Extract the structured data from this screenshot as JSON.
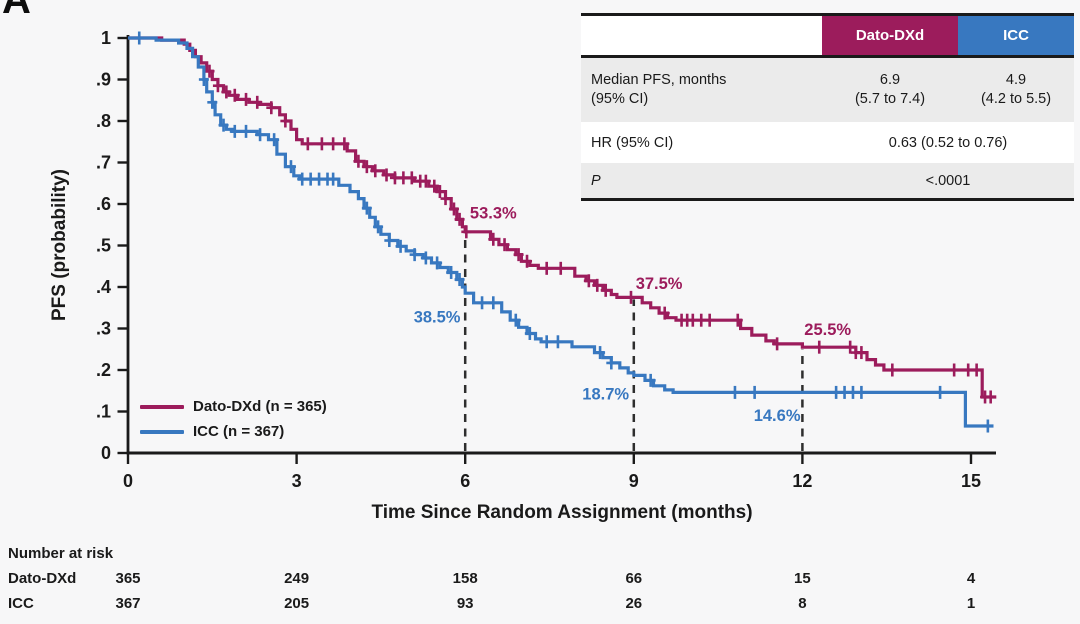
{
  "panel_label": "A",
  "colors": {
    "dato": "#9C1C5C",
    "icc": "#3878C0",
    "axis": "#1A1A1A",
    "dash": "#2E2E2E",
    "background": "#F7F7F8",
    "table_gray_row": "#EBEBEB",
    "table_border": "#1A1A1A",
    "header_dato_bg": "#9C1C5C",
    "header_icc_bg": "#3878C0"
  },
  "summary_table": {
    "col_headers": {
      "dato": "Dato-DXd",
      "icc": "ICC"
    },
    "row_median": {
      "label_line1": "Median PFS, months",
      "label_line2": "(95% CI)",
      "dato_value": "6.9",
      "dato_ci": "(5.7 to 7.4)",
      "icc_value": "4.9",
      "icc_ci": "(4.2 to 5.5)"
    },
    "row_hr": {
      "label": "HR (95% CI)",
      "value": "0.63 (0.52 to 0.76)"
    },
    "row_p": {
      "label": "P",
      "value": "<.0001"
    }
  },
  "legend": {
    "items": [
      {
        "key": "dato",
        "label": "Dato-DXd (n = 365)"
      },
      {
        "key": "icc",
        "label": "ICC (n = 367)"
      }
    ]
  },
  "chart_data": {
    "type": "line",
    "subtype": "kaplan-meier-step",
    "x_axis": {
      "label": "Time Since Random Assignment (months)",
      "ticks": [
        0,
        3,
        6,
        9,
        12,
        15
      ],
      "min": 0,
      "max": 15.6
    },
    "y_axis": {
      "label": "PFS (probability)",
      "min": 0,
      "max": 1,
      "ticks": [
        {
          "v": 1.0,
          "t": "1"
        },
        {
          "v": 0.9,
          "t": ".9"
        },
        {
          "v": 0.8,
          "t": ".8"
        },
        {
          "v": 0.7,
          "t": ".7"
        },
        {
          "v": 0.6,
          "t": ".6"
        },
        {
          "v": 0.5,
          "t": ".5"
        },
        {
          "v": 0.4,
          "t": ".4"
        },
        {
          "v": 0.3,
          "t": ".3"
        },
        {
          "v": 0.2,
          "t": ".2"
        },
        {
          "v": 0.1,
          "t": ".1"
        },
        {
          "v": 0.0,
          "t": "0"
        }
      ]
    },
    "series": [
      {
        "name": "Dato-DXd (n = 365)",
        "color_key": "dato",
        "steps": [
          [
            0,
            1.0
          ],
          [
            0.6,
            0.995
          ],
          [
            1.0,
            0.985
          ],
          [
            1.1,
            0.97
          ],
          [
            1.2,
            0.955
          ],
          [
            1.3,
            0.94
          ],
          [
            1.4,
            0.92
          ],
          [
            1.5,
            0.9
          ],
          [
            1.6,
            0.885
          ],
          [
            1.7,
            0.87
          ],
          [
            1.8,
            0.862
          ],
          [
            1.95,
            0.852
          ],
          [
            2.15,
            0.845
          ],
          [
            2.35,
            0.84
          ],
          [
            2.55,
            0.832
          ],
          [
            2.7,
            0.815
          ],
          [
            2.8,
            0.8
          ],
          [
            2.9,
            0.78
          ],
          [
            3.0,
            0.755
          ],
          [
            3.1,
            0.745
          ],
          [
            3.9,
            0.728
          ],
          [
            4.05,
            0.703
          ],
          [
            4.2,
            0.69
          ],
          [
            4.35,
            0.68
          ],
          [
            4.55,
            0.67
          ],
          [
            4.75,
            0.663
          ],
          [
            5.1,
            0.655
          ],
          [
            5.35,
            0.643
          ],
          [
            5.5,
            0.63
          ],
          [
            5.65,
            0.613
          ],
          [
            5.75,
            0.588
          ],
          [
            5.85,
            0.563
          ],
          [
            5.95,
            0.545
          ],
          [
            6.0,
            0.533
          ],
          [
            6.45,
            0.515
          ],
          [
            6.6,
            0.502
          ],
          [
            6.75,
            0.49
          ],
          [
            6.9,
            0.478
          ],
          [
            7.0,
            0.462
          ],
          [
            7.15,
            0.452
          ],
          [
            7.3,
            0.445
          ],
          [
            7.95,
            0.426
          ],
          [
            8.15,
            0.415
          ],
          [
            8.3,
            0.404
          ],
          [
            8.45,
            0.392
          ],
          [
            8.6,
            0.382
          ],
          [
            8.7,
            0.375
          ],
          [
            9.15,
            0.362
          ],
          [
            9.3,
            0.35
          ],
          [
            9.45,
            0.337
          ],
          [
            9.6,
            0.326
          ],
          [
            9.75,
            0.32
          ],
          [
            10.9,
            0.3
          ],
          [
            11.1,
            0.284
          ],
          [
            11.35,
            0.27
          ],
          [
            11.5,
            0.263
          ],
          [
            12.0,
            0.255
          ],
          [
            12.95,
            0.242
          ],
          [
            13.15,
            0.225
          ],
          [
            13.3,
            0.212
          ],
          [
            13.45,
            0.2
          ],
          [
            15.2,
            0.135
          ],
          [
            15.45,
            0.135
          ]
        ],
        "censor_times": [
          1.45,
          1.6,
          1.75,
          1.9,
          2.1,
          2.3,
          2.55,
          2.8,
          3.2,
          3.45,
          3.65,
          3.85,
          4.1,
          4.25,
          4.4,
          4.6,
          4.75,
          4.9,
          5.05,
          5.2,
          5.3,
          5.45,
          5.55,
          5.65,
          5.8,
          5.9,
          6.02,
          6.5,
          6.7,
          6.95,
          7.1,
          7.45,
          7.7,
          8.2,
          8.35,
          8.5,
          8.95,
          9.55,
          9.85,
          9.95,
          10.05,
          10.2,
          10.35,
          10.85,
          11.55,
          12.3,
          12.85,
          12.95,
          13.05,
          13.6,
          14.7,
          14.95,
          15.1,
          15.25,
          15.35
        ]
      },
      {
        "name": "ICC (n = 367)",
        "color_key": "icc",
        "steps": [
          [
            0,
            1.0
          ],
          [
            0.5,
            0.995
          ],
          [
            0.9,
            0.988
          ],
          [
            1.05,
            0.975
          ],
          [
            1.15,
            0.955
          ],
          [
            1.25,
            0.93
          ],
          [
            1.35,
            0.9
          ],
          [
            1.4,
            0.87
          ],
          [
            1.5,
            0.845
          ],
          [
            1.55,
            0.815
          ],
          [
            1.65,
            0.79
          ],
          [
            1.75,
            0.78
          ],
          [
            1.85,
            0.775
          ],
          [
            2.3,
            0.767
          ],
          [
            2.5,
            0.755
          ],
          [
            2.65,
            0.72
          ],
          [
            2.8,
            0.69
          ],
          [
            2.95,
            0.668
          ],
          [
            3.05,
            0.66
          ],
          [
            3.75,
            0.645
          ],
          [
            3.95,
            0.63
          ],
          [
            4.1,
            0.613
          ],
          [
            4.2,
            0.59
          ],
          [
            4.3,
            0.568
          ],
          [
            4.4,
            0.545
          ],
          [
            4.5,
            0.527
          ],
          [
            4.65,
            0.512
          ],
          [
            4.8,
            0.498
          ],
          [
            4.95,
            0.487
          ],
          [
            5.1,
            0.478
          ],
          [
            5.25,
            0.47
          ],
          [
            5.4,
            0.458
          ],
          [
            5.55,
            0.447
          ],
          [
            5.7,
            0.435
          ],
          [
            5.85,
            0.418
          ],
          [
            5.95,
            0.4
          ],
          [
            6.0,
            0.385
          ],
          [
            6.15,
            0.362
          ],
          [
            6.65,
            0.34
          ],
          [
            6.8,
            0.32
          ],
          [
            6.95,
            0.303
          ],
          [
            7.1,
            0.288
          ],
          [
            7.25,
            0.275
          ],
          [
            7.35,
            0.268
          ],
          [
            7.9,
            0.256
          ],
          [
            8.3,
            0.242
          ],
          [
            8.45,
            0.23
          ],
          [
            8.6,
            0.217
          ],
          [
            8.75,
            0.205
          ],
          [
            8.9,
            0.193
          ],
          [
            9.0,
            0.187
          ],
          [
            9.2,
            0.175
          ],
          [
            9.35,
            0.162
          ],
          [
            9.55,
            0.152
          ],
          [
            9.7,
            0.146
          ],
          [
            14.9,
            0.065
          ],
          [
            15.4,
            0.065
          ]
        ],
        "censor_times": [
          0.2,
          1.35,
          1.5,
          1.7,
          1.9,
          2.1,
          2.35,
          2.6,
          2.9,
          3.1,
          3.25,
          3.4,
          3.55,
          3.65,
          4.25,
          4.45,
          4.65,
          4.85,
          5.1,
          5.3,
          5.5,
          5.75,
          5.9,
          6.3,
          6.5,
          6.9,
          7.15,
          7.45,
          7.65,
          8.4,
          8.6,
          9.3,
          10.8,
          11.15,
          12.6,
          12.75,
          12.9,
          13.05,
          14.45,
          15.3
        ]
      }
    ],
    "dashed_lines": [
      {
        "month": 6,
        "top_value": 0.533
      },
      {
        "month": 9,
        "top_value": 0.375
      },
      {
        "month": 12,
        "top_value": 0.255
      }
    ],
    "annotations": [
      {
        "text": "53.3%",
        "color_key": "dato",
        "month": 6.5,
        "value": 0.578
      },
      {
        "text": "38.5%",
        "color_key": "icc",
        "month": 5.5,
        "value": 0.328
      },
      {
        "text": "37.5%",
        "color_key": "dato",
        "month": 9.45,
        "value": 0.408
      },
      {
        "text": "18.7%",
        "color_key": "icc",
        "month": 8.5,
        "value": 0.142
      },
      {
        "text": "25.5%",
        "color_key": "dato",
        "month": 12.45,
        "value": 0.298
      },
      {
        "text": "14.6%",
        "color_key": "icc",
        "month": 11.55,
        "value": 0.09
      }
    ],
    "number_at_risk": {
      "title": "Number at risk",
      "time_points": [
        0,
        3,
        6,
        9,
        12,
        15
      ],
      "rows": [
        {
          "label": "Dato-DXd",
          "values": [
            "365",
            "249",
            "158",
            "66",
            "15",
            "4"
          ]
        },
        {
          "label": "ICC",
          "values": [
            "367",
            "205",
            "93",
            "26",
            "8",
            "1"
          ]
        }
      ]
    }
  }
}
